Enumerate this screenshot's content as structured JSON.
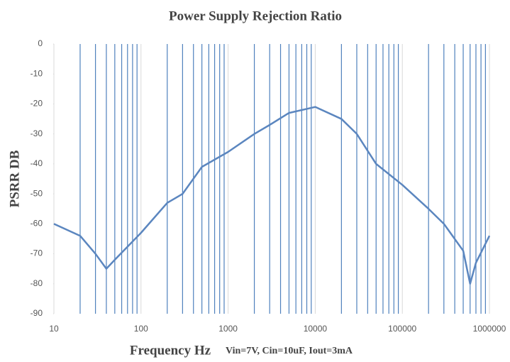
{
  "chart_data": {
    "type": "line",
    "title": "Power Supply Rejection Ratio",
    "xlabel": "Frequency Hz",
    "annotation": "Vin=7V, Cin=10uF, Iout=3mA",
    "ylabel": "PSRR  DB",
    "xscale": "log",
    "x": [
      10,
      20,
      30,
      40,
      50,
      100,
      200,
      300,
      500,
      1000,
      2000,
      3000,
      5000,
      10000,
      20000,
      30000,
      50000,
      100000,
      200000,
      300000,
      500000,
      600000,
      700000,
      1000000
    ],
    "series": [
      {
        "name": "PSRR",
        "color": "#5b86bf",
        "values": [
          -60,
          -64,
          -70,
          -75,
          -72,
          -63,
          -53,
          -50,
          -41,
          -36,
          -30,
          -27,
          -23,
          -21,
          -25,
          -30,
          -40,
          -47,
          -55,
          -60,
          -69,
          -80,
          -73,
          -64
        ]
      }
    ],
    "xlim": [
      10,
      1000000
    ],
    "xticks": [
      10,
      100,
      1000,
      10000,
      100000,
      1000000
    ],
    "xminor": [
      20,
      30,
      40,
      50,
      60,
      70,
      80,
      90,
      200,
      300,
      400,
      500,
      600,
      700,
      800,
      900,
      2000,
      3000,
      4000,
      5000,
      6000,
      7000,
      8000,
      9000,
      20000,
      30000,
      40000,
      50000,
      60000,
      70000,
      80000,
      90000,
      200000,
      300000,
      400000,
      500000,
      600000,
      700000,
      800000,
      900000
    ],
    "ylim": [
      -90,
      0
    ],
    "yticks": [
      0,
      -10,
      -20,
      -30,
      -40,
      -50,
      -60,
      -70,
      -80,
      -90
    ],
    "grid_color": "#4f81bd"
  }
}
